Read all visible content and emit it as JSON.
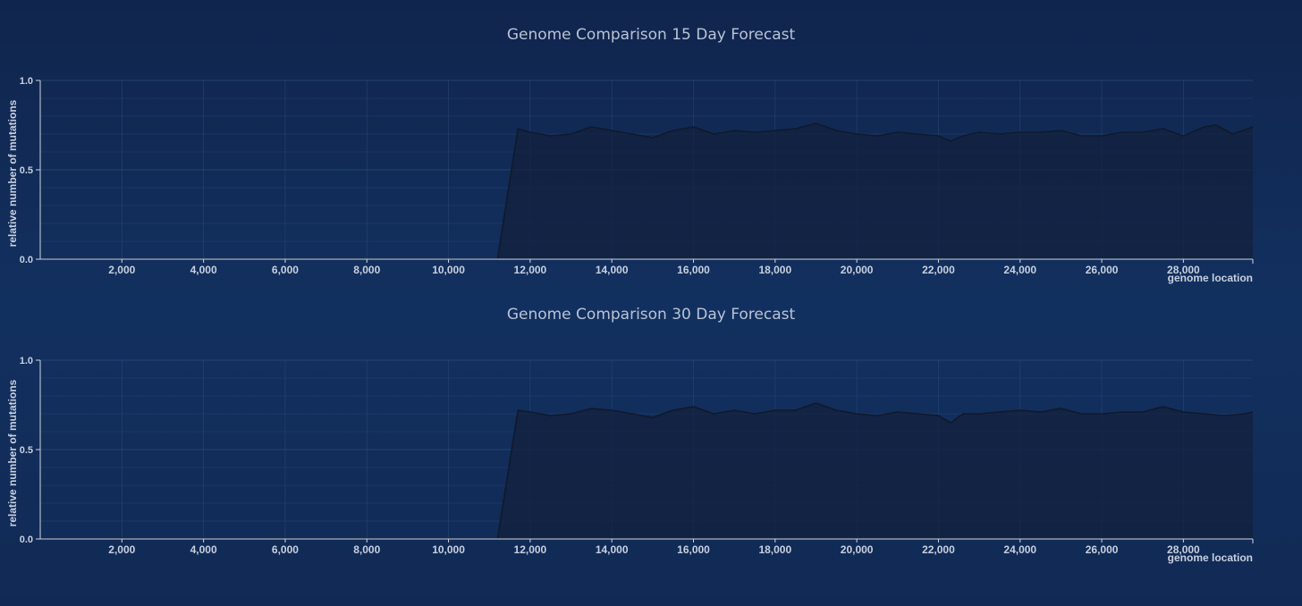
{
  "colors": {
    "background": "#112a55",
    "grid": "#2a4a78",
    "axis": "#d0d6e2",
    "tick_label": "#c8d0df",
    "line": "#0f1a2c",
    "fill": "#13203a"
  },
  "chart_data": [
    {
      "type": "area",
      "title": "Genome Comparison 15 Day Forecast",
      "xlabel": "genome location",
      "ylabel": "relative number of mutations",
      "xlim": [
        0,
        29700
      ],
      "ylim": [
        0,
        1
      ],
      "grid": true,
      "x_ticks": [
        2000,
        4000,
        6000,
        8000,
        10000,
        12000,
        14000,
        16000,
        18000,
        20000,
        22000,
        24000,
        26000,
        28000
      ],
      "x_tick_labels": [
        "2,000",
        "4,000",
        "6,000",
        "8,000",
        "10,000",
        "12,000",
        "14,000",
        "16,000",
        "18,000",
        "20,000",
        "22,000",
        "24,000",
        "26,000",
        "28,000"
      ],
      "y_ticks": [
        0,
        0.5,
        1
      ],
      "y_tick_labels": [
        "0.0",
        "0.5",
        "1.0"
      ],
      "x": [
        0,
        11200,
        11700,
        12000,
        12500,
        13000,
        13500,
        14000,
        14500,
        15000,
        15500,
        16000,
        16500,
        17000,
        17500,
        18000,
        18500,
        19000,
        19500,
        20000,
        20500,
        21000,
        21500,
        22000,
        22300,
        22600,
        23000,
        23500,
        24000,
        24500,
        25000,
        25500,
        26000,
        26500,
        27000,
        27500,
        28000,
        28500,
        28800,
        29200,
        29700
      ],
      "values": [
        0,
        0,
        0.73,
        0.71,
        0.69,
        0.7,
        0.74,
        0.72,
        0.7,
        0.68,
        0.72,
        0.74,
        0.7,
        0.72,
        0.71,
        0.72,
        0.73,
        0.76,
        0.72,
        0.7,
        0.69,
        0.71,
        0.7,
        0.69,
        0.66,
        0.69,
        0.71,
        0.7,
        0.71,
        0.71,
        0.72,
        0.69,
        0.69,
        0.71,
        0.71,
        0.73,
        0.69,
        0.74,
        0.75,
        0.7,
        0.74
      ]
    },
    {
      "type": "area",
      "title": "Genome Comparison 30 Day Forecast",
      "xlabel": "genome location",
      "ylabel": "relative number of mutations",
      "xlim": [
        0,
        29700
      ],
      "ylim": [
        0,
        1
      ],
      "grid": true,
      "x_ticks": [
        2000,
        4000,
        6000,
        8000,
        10000,
        12000,
        14000,
        16000,
        18000,
        20000,
        22000,
        24000,
        26000,
        28000
      ],
      "x_tick_labels": [
        "2,000",
        "4,000",
        "6,000",
        "8,000",
        "10,000",
        "12,000",
        "14,000",
        "16,000",
        "18,000",
        "20,000",
        "22,000",
        "24,000",
        "26,000",
        "28,000"
      ],
      "y_ticks": [
        0,
        0.5,
        1
      ],
      "y_tick_labels": [
        "0.0",
        "0.5",
        "1.0"
      ],
      "x": [
        0,
        11200,
        11700,
        12000,
        12500,
        13000,
        13500,
        14000,
        14500,
        15000,
        15500,
        16000,
        16500,
        17000,
        17500,
        18000,
        18500,
        19000,
        19500,
        20000,
        20500,
        21000,
        21500,
        22000,
        22300,
        22600,
        23000,
        23500,
        24000,
        24500,
        25000,
        25500,
        26000,
        26500,
        27000,
        27500,
        28000,
        28500,
        29000,
        29500,
        29700
      ],
      "values": [
        0,
        0,
        0.72,
        0.71,
        0.69,
        0.7,
        0.73,
        0.72,
        0.7,
        0.68,
        0.72,
        0.74,
        0.7,
        0.72,
        0.7,
        0.72,
        0.72,
        0.76,
        0.72,
        0.7,
        0.69,
        0.71,
        0.7,
        0.69,
        0.65,
        0.7,
        0.7,
        0.71,
        0.72,
        0.71,
        0.73,
        0.7,
        0.7,
        0.71,
        0.71,
        0.74,
        0.71,
        0.7,
        0.69,
        0.7,
        0.71
      ]
    }
  ]
}
